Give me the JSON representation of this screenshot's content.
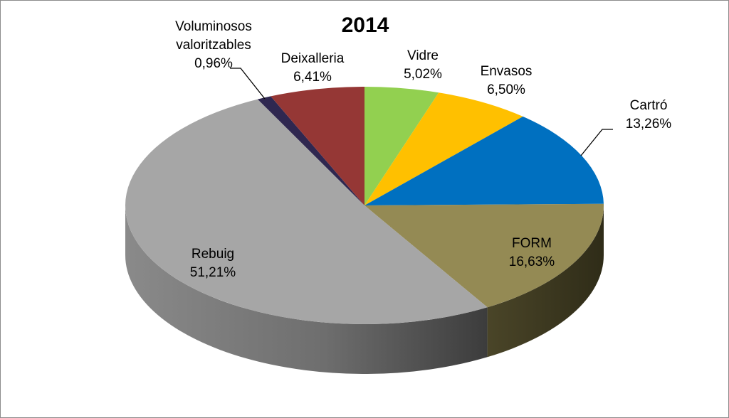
{
  "chart_data": {
    "type": "pie",
    "title": "2014",
    "style": "3d-exploded-none",
    "slices": [
      {
        "name": "Vidre",
        "value": 5.02,
        "label": "5,02%",
        "color": "#92d050"
      },
      {
        "name": "Envasos",
        "value": 6.5,
        "label": "6,50%",
        "color": "#ffc000"
      },
      {
        "name": "Cartró",
        "value": 13.26,
        "label": "13,26%",
        "color": "#0070c0"
      },
      {
        "name": "FORM",
        "value": 16.63,
        "label": "16,63%",
        "color": "#948a54"
      },
      {
        "name": "Rebuig",
        "value": 51.21,
        "label": "51,21%",
        "color": "#a6a6a6"
      },
      {
        "name": "Voluminosos valoritzables",
        "value": 0.96,
        "label": "0,96%",
        "color": "#2f2750"
      },
      {
        "name": "Deixalleria",
        "value": 6.41,
        "label": "6,41%",
        "color": "#953735"
      }
    ]
  }
}
